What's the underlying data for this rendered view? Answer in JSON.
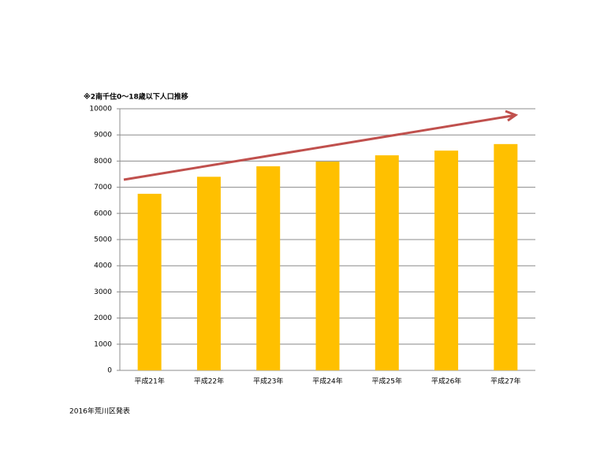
{
  "chart_data": {
    "type": "bar",
    "title": "※2南千住0～18歳以下人口推移",
    "categories": [
      "平成21年",
      "平成22年",
      "平成23年",
      "平成24年",
      "平成25年",
      "平成26年",
      "平成27年"
    ],
    "values": [
      6750,
      7400,
      7800,
      7980,
      8220,
      8400,
      8650
    ],
    "color": "#ffc000",
    "ylim": [
      0,
      10000
    ],
    "yticks": [
      0,
      1000,
      2000,
      3000,
      4000,
      5000,
      6000,
      7000,
      8000,
      9000,
      10000
    ],
    "grid": true,
    "source": "2016年荒川区発表"
  }
}
